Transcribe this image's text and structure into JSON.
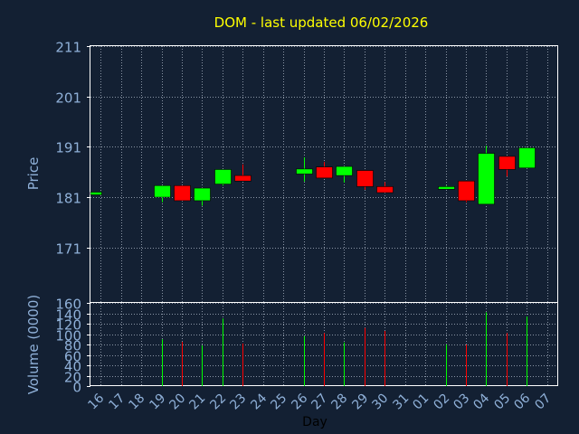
{
  "chart_data": [
    {
      "type": "candlestick",
      "title": "DOM - last updated 06/02/2026",
      "ylabel": "Price",
      "xlabel": "Day",
      "ylim": [
        160,
        211
      ],
      "yticks": [
        211,
        201,
        191,
        181,
        171,
        160
      ],
      "grid": true,
      "categories": [
        "16",
        "17",
        "18",
        "19",
        "20",
        "21",
        "22",
        "23",
        "24",
        "25",
        "26",
        "27",
        "28",
        "29",
        "30",
        "31",
        "01",
        "02",
        "03",
        "04",
        "05",
        "06",
        "07"
      ],
      "candles": [
        {
          "day": "16",
          "open": 181.5,
          "close": 182.0,
          "high": 182.1,
          "low": 181.4
        },
        {
          "day": "19",
          "open": 181.0,
          "close": 183.3,
          "high": 183.3,
          "low": 180.0
        },
        {
          "day": "20",
          "open": 183.3,
          "close": 180.3,
          "high": 183.3,
          "low": 180.3
        },
        {
          "day": "21",
          "open": 180.3,
          "close": 182.8,
          "high": 182.8,
          "low": 179.3
        },
        {
          "day": "22",
          "open": 183.6,
          "close": 186.5,
          "high": 186.5,
          "low": 183.3
        },
        {
          "day": "23",
          "open": 185.3,
          "close": 184.2,
          "high": 187.5,
          "low": 184.2
        },
        {
          "day": "26",
          "open": 185.6,
          "close": 186.6,
          "high": 188.9,
          "low": 184.1
        },
        {
          "day": "27",
          "open": 187.0,
          "close": 184.8,
          "high": 188.0,
          "low": 184.8
        },
        {
          "day": "28",
          "open": 185.3,
          "close": 187.1,
          "high": 187.1,
          "low": 183.9
        },
        {
          "day": "29",
          "open": 186.3,
          "close": 183.1,
          "high": 186.3,
          "low": 182.5
        },
        {
          "day": "30",
          "open": 183.1,
          "close": 181.9,
          "high": 184.0,
          "low": 181.9
        },
        {
          "day": "02",
          "open": 182.8,
          "close": 183.1,
          "high": 183.3,
          "low": 182.8
        },
        {
          "day": "03",
          "open": 184.2,
          "close": 180.3,
          "high": 184.2,
          "low": 180.0
        },
        {
          "day": "04",
          "open": 179.6,
          "close": 189.7,
          "high": 191.2,
          "low": 179.6
        },
        {
          "day": "05",
          "open": 189.1,
          "close": 186.5,
          "high": 189.1,
          "low": 185.1
        },
        {
          "day": "06",
          "open": 186.8,
          "close": 190.8,
          "high": 190.8,
          "low": 186.8
        }
      ]
    },
    {
      "type": "bar",
      "ylabel": "Volume (0000)",
      "xlabel": "Day",
      "ylim": [
        0,
        160
      ],
      "yticks": [
        0,
        20,
        40,
        60,
        80,
        100,
        120,
        140
      ],
      "grid": true,
      "categories": [
        "16",
        "17",
        "18",
        "19",
        "20",
        "21",
        "22",
        "23",
        "24",
        "25",
        "26",
        "27",
        "28",
        "29",
        "30",
        "31",
        "01",
        "02",
        "03",
        "04",
        "05",
        "06",
        "07"
      ],
      "values": [
        {
          "day": "19",
          "volume": 90,
          "direction": "up"
        },
        {
          "day": "20",
          "volume": 85,
          "direction": "down"
        },
        {
          "day": "21",
          "volume": 78,
          "direction": "up"
        },
        {
          "day": "22",
          "volume": 130,
          "direction": "up"
        },
        {
          "day": "23",
          "volume": 82,
          "direction": "down"
        },
        {
          "day": "26",
          "volume": 96,
          "direction": "up"
        },
        {
          "day": "27",
          "volume": 102,
          "direction": "down"
        },
        {
          "day": "28",
          "volume": 84,
          "direction": "up"
        },
        {
          "day": "29",
          "volume": 112,
          "direction": "down"
        },
        {
          "day": "30",
          "volume": 106,
          "direction": "down"
        },
        {
          "day": "02",
          "volume": 80,
          "direction": "up"
        },
        {
          "day": "03",
          "volume": 80,
          "direction": "down"
        },
        {
          "day": "04",
          "volume": 142,
          "direction": "up"
        },
        {
          "day": "05",
          "volume": 102,
          "direction": "down"
        },
        {
          "day": "06",
          "volume": 134,
          "direction": "up"
        }
      ]
    }
  ],
  "colors": {
    "background": "#132033",
    "plot_background": "#132033",
    "grid": "#8a95a5",
    "axis": "#ffffff",
    "title": "#ffff00",
    "label": "#8fb0d8",
    "up": "#00ff00",
    "down": "#ff0000",
    "outline": "#000000"
  }
}
